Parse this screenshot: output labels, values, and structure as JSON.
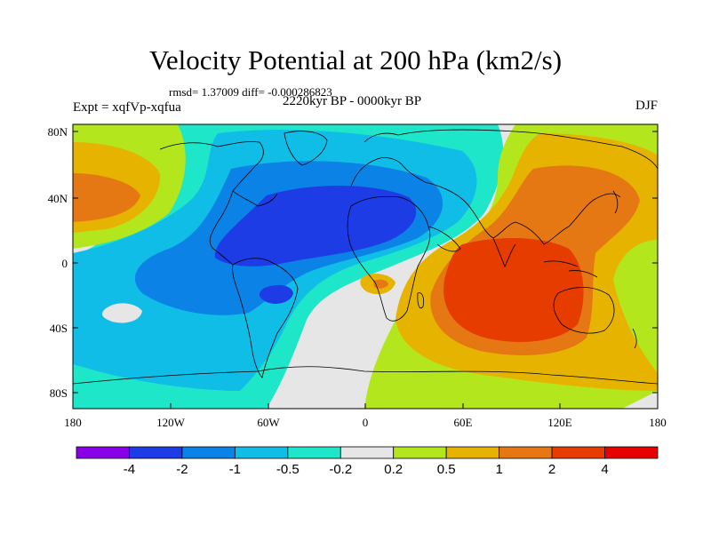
{
  "title": "Velocity Potential at 200 hPa (km2/s)",
  "stats_line": "rmsd= 1.37009  diff= -0.000286823",
  "period_line": "2220kyr BP - 0000kyr BP",
  "experiment_label": "Expt = xqfVp-xqfua",
  "season_label": "DJF",
  "lat_ticks": [
    "80N",
    "40N",
    "0",
    "40S",
    "80S"
  ],
  "lon_ticks": [
    "180",
    "120W",
    "60W",
    "0",
    "60E",
    "120E",
    "180"
  ],
  "colorbar": {
    "labels": [
      "-4",
      "-2",
      "-1",
      "-0.5",
      "-0.2",
      "0.2",
      "0.5",
      "1",
      "2",
      "4"
    ],
    "colors": [
      "#8a00e6",
      "#1e3ce6",
      "#0a82e6",
      "#10bde6",
      "#1ee6c8",
      "#e6e6e6",
      "#b4e61e",
      "#e6b400",
      "#e67814",
      "#e63c00",
      "#e60000"
    ]
  },
  "field_colors": {
    "neg_strong": "#1e3ce6",
    "neg_mid": "#0a82e6",
    "neg_weak": "#10bde6",
    "neg_faint": "#1ee6c8",
    "neutral": "#e6e6e6",
    "pos_faint": "#b4e61e",
    "pos_weak": "#e6b400",
    "pos_mid": "#e67814",
    "pos_strong": "#e63c00"
  }
}
